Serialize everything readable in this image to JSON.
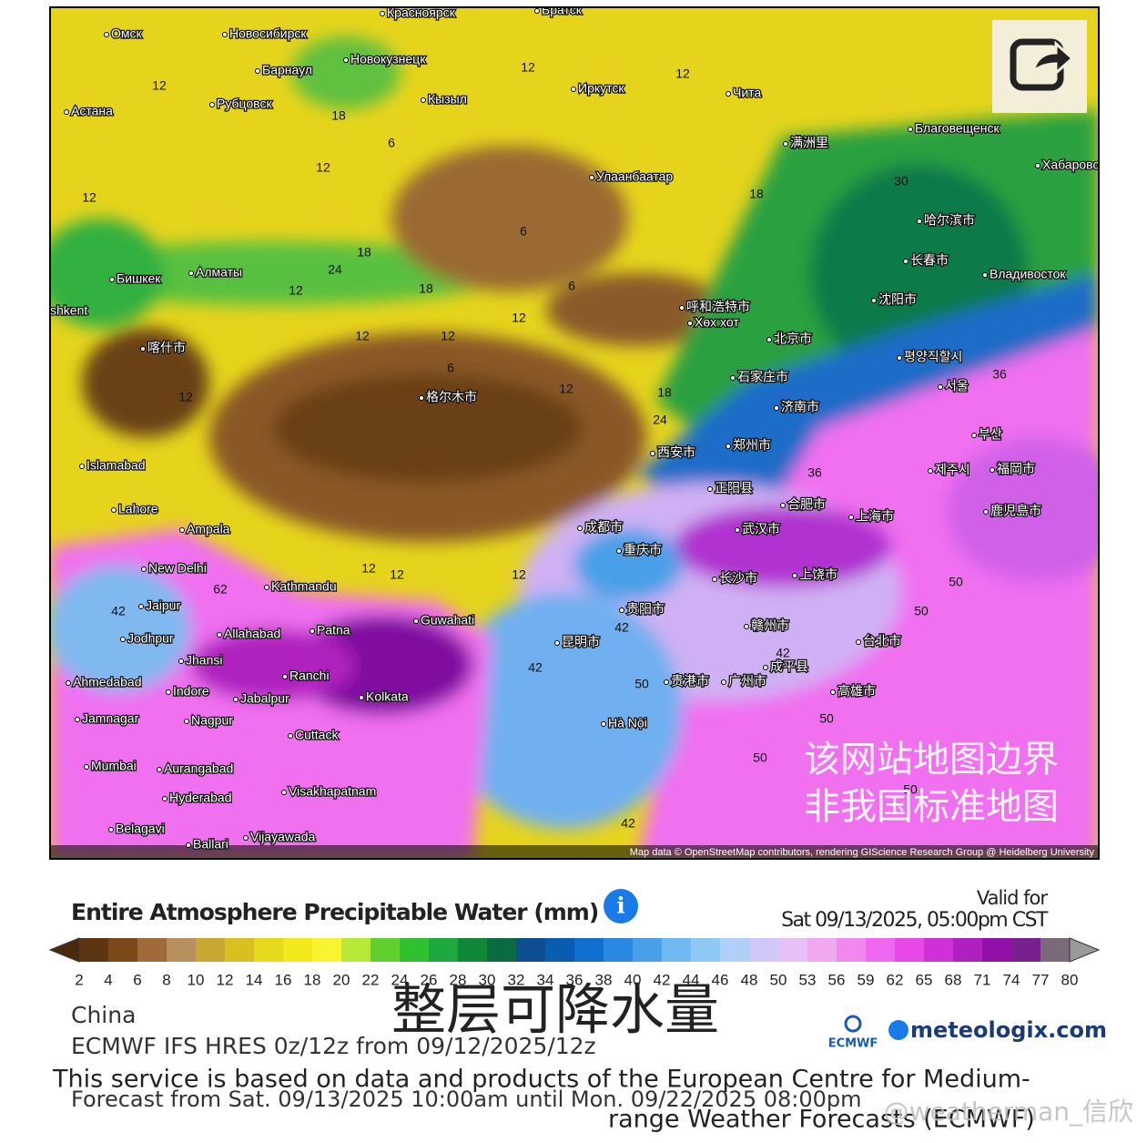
{
  "map": {
    "cities": [
      "Омск",
      "Новосибирск",
      "Барнаул",
      "Новокузнецк",
      "Красноярск",
      "Братск",
      "Иркутск",
      "Кызыл",
      "Чита",
      "Астана",
      "Рубцовск",
      "Благовещенск",
      "Хабаровск",
      "满洲里",
      "Улаанбаатар",
      "哈尔滨市",
      "长春市",
      "Владивосток",
      "沈阳市",
      "Бишкек",
      "Алматы",
      "呼和浩特市",
      "Хөх хот",
      "shkent",
      "喀什市",
      "北京市",
      "평양직할시",
      "石家庄市",
      "서울",
      "格尔木市",
      "济南市",
      "Islamabad",
      "西安市",
      "郑州市",
      "부산",
      "제주시",
      "福岡市",
      "正阳县",
      "Lahore",
      "合肥市",
      "Ampala",
      "成都市",
      "武汉市",
      "上海市",
      "鹿児島市",
      "New Delhi",
      "重庆市",
      "Kathmandu",
      "长沙市",
      "上饶市",
      "Jaipur",
      "Guwahati",
      "贵阳市",
      "Allahabad",
      "Patna",
      "Jodhpur",
      "赣州市",
      "昆明市",
      "台北市",
      "Jhansi",
      "成平县",
      "Ranchi",
      "Ahmedabad",
      "Indore",
      "贵港市",
      "广州市",
      "Jabalpur",
      "Kolkata",
      "高雄市",
      "Jamnagar",
      "Nagpur",
      "Hà Nội",
      "Cuttack",
      "Mumbai",
      "Aurangabad",
      "Hyderabad",
      "Visakhapatnam",
      "Belagavi",
      "Vijayawada",
      "Ballari"
    ],
    "contour_labels": [
      12,
      12,
      12,
      18,
      12,
      12,
      18,
      18,
      12,
      24,
      12,
      18,
      6,
      6,
      6,
      12,
      12,
      12,
      6,
      12,
      18,
      24,
      30,
      36,
      42,
      50,
      50,
      50,
      42,
      42,
      50,
      50,
      42,
      12,
      12,
      50,
      62,
      42,
      36,
      12
    ],
    "attribution": "Map data © OpenStreetMap contributors, rendering GIScience Research Group @ Heidelberg University",
    "watermark": [
      "该网站地图边界",
      "非我国标准地图"
    ]
  },
  "legend": {
    "title": "Entire Atmosphere Precipitable Water (mm)",
    "valid_label": "Valid for",
    "valid_time": "Sat 09/13/2025, 05:00pm CST",
    "ticks": [
      2,
      4,
      6,
      8,
      10,
      12,
      14,
      16,
      18,
      20,
      22,
      24,
      26,
      28,
      30,
      32,
      34,
      36,
      38,
      40,
      42,
      44,
      46,
      48,
      50,
      53,
      56,
      59,
      62,
      65,
      68,
      71,
      74,
      77,
      80
    ],
    "colors": [
      "#4a2a0a",
      "#5c3510",
      "#7a4a1a",
      "#a06a3a",
      "#b89060",
      "#c8a830",
      "#d8c020",
      "#e6d81a",
      "#f2e81a",
      "#f8f430",
      "#b8e838",
      "#60d030",
      "#30c030",
      "#20a840",
      "#108838",
      "#0a6a40",
      "#0c4e90",
      "#0a5cb0",
      "#1070d0",
      "#2a88e0",
      "#4aa0e8",
      "#70b8f0",
      "#90c8f4",
      "#b0d0f8",
      "#d0c8f8",
      "#e8c0f8",
      "#f0a8f0",
      "#f088f0",
      "#f068f0",
      "#e848e8",
      "#d030d8",
      "#b020c0",
      "#9010a8",
      "#782090",
      "#7a6a7a",
      "#9a9a9a"
    ]
  },
  "footer": {
    "region": "China",
    "model": "ECMWF IFS HRES 0z/12z from 09/12/2025/12z",
    "overlay_title": "整层可降水量",
    "ecmwf": "ECMWF",
    "brand": "meteologix.com",
    "disclaimer": [
      "This service is based on data and products of the European Centre for Medium-",
      "range Weather Forecasts (ECMWF)"
    ],
    "forecast": "Forecast from Sat. 09/13/2025 10:00am until Mon. 09/22/2025 08:00pm",
    "weibo": "@weatherman_信欣"
  }
}
